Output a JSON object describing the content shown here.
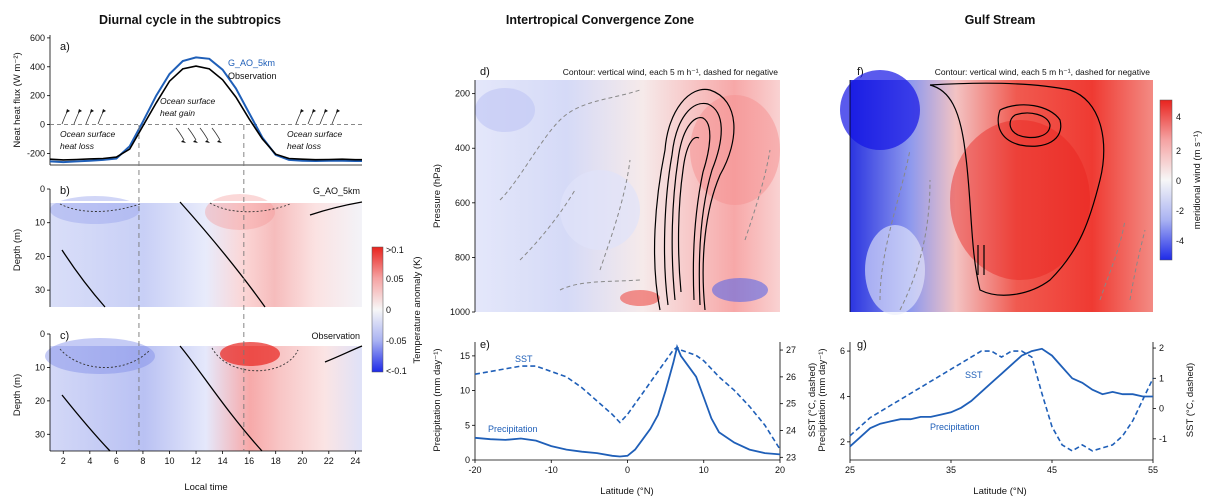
{
  "titles": {
    "left": "Diurnal cycle in the subtropics",
    "middle": "Intertropical Convergence Zone",
    "right": "Gulf Stream"
  },
  "annotations": {
    "heat_loss_left": [
      "Ocean surface",
      "heat loss"
    ],
    "heat_gain": [
      "Ocean surface",
      "heat gain"
    ],
    "heat_loss_right": [
      "Ocean surface",
      "heat loss"
    ],
    "contour_note": "Contour: vertical wind, each 5 m h⁻¹, dashed for negative"
  },
  "temperature_colorbar": {
    "label": "Temperature anomaly (K)",
    "ticks": [
      ">0.1",
      "0.05",
      "0",
      "-0.05",
      "<-0.1"
    ]
  },
  "wind_colorbar": {
    "label": "meridional wind (m s⁻¹)",
    "ticks": [
      "4",
      "2",
      "0",
      "-2",
      "-4"
    ]
  },
  "chart_data": [
    {
      "panel": "a)",
      "type": "line",
      "ylabel": "Neat heat flux (W m⁻²)",
      "xlim": [
        1,
        24.5
      ],
      "ylim": [
        -280,
        620
      ],
      "yticks": [
        -200,
        0,
        200,
        400,
        600
      ],
      "vlines": [
        7.7,
        15.6
      ],
      "hline": 0,
      "series": [
        {
          "name": "G_AO_5km",
          "color": "#1f5fb8",
          "x": [
            1,
            2,
            3,
            4,
            5,
            6,
            7,
            8,
            9,
            10,
            11,
            12,
            13,
            14,
            15,
            16,
            17,
            18,
            19,
            20,
            21,
            22,
            23,
            24,
            24.5
          ],
          "y": [
            -255,
            -260,
            -255,
            -250,
            -245,
            -235,
            -150,
            20,
            200,
            350,
            440,
            465,
            455,
            380,
            250,
            80,
            -90,
            -210,
            -245,
            -250,
            -252,
            -250,
            -250,
            -252,
            -252
          ]
        },
        {
          "name": "Observation",
          "color": "#000000",
          "x": [
            1,
            2,
            3,
            4,
            5,
            6,
            7,
            8,
            9,
            10,
            11,
            12,
            13,
            14,
            15,
            16,
            17,
            18,
            19,
            20,
            21,
            22,
            23,
            24,
            24.5
          ],
          "y": [
            -240,
            -245,
            -242,
            -238,
            -235,
            -225,
            -170,
            -10,
            150,
            300,
            385,
            405,
            385,
            310,
            190,
            40,
            -100,
            -205,
            -235,
            -240,
            -243,
            -242,
            -240,
            -243,
            -243
          ]
        }
      ]
    },
    {
      "panel": "b)",
      "type": "heatmap",
      "name": "G_AO_5km",
      "ylabel": "Depth (m)",
      "yticks": [
        0,
        10,
        20,
        30
      ],
      "ylim": [
        0,
        35
      ]
    },
    {
      "panel": "c)",
      "type": "heatmap",
      "name": "Observation",
      "ylabel": "Depth (m)",
      "xlabel": "Local time",
      "yticks": [
        0,
        10,
        20,
        30
      ],
      "xticks": [
        2,
        4,
        6,
        8,
        10,
        12,
        14,
        16,
        18,
        20,
        22,
        24
      ],
      "ylim": [
        0,
        35
      ]
    },
    {
      "panel": "d)",
      "type": "heatmap",
      "ylabel": "Pressure (hPa)",
      "yticks": [
        200,
        400,
        600,
        800,
        1000
      ],
      "ylim": [
        150,
        1000
      ],
      "xlim": [
        -20,
        20
      ]
    },
    {
      "panel": "e)",
      "type": "line",
      "ylabel": "Precipitation (mm day⁻¹)",
      "y2label": "SST (°C, dashed)",
      "xlabel": "Latitude (°N)",
      "xticks": [
        -20,
        -10,
        0,
        10,
        20
      ],
      "yticks": [
        0,
        5,
        10,
        15
      ],
      "y2ticks": [
        23,
        24,
        25,
        26,
        27
      ],
      "xlim": [
        -20,
        20
      ],
      "ylim": [
        0,
        17
      ],
      "y2lim": [
        22.9,
        27.3
      ],
      "series": [
        {
          "name": "Precipitation",
          "x": [
            -20,
            -18,
            -16,
            -14,
            -12,
            -10,
            -8,
            -6,
            -4,
            -2,
            -1,
            0,
            1,
            2,
            3,
            4,
            5,
            6,
            6.5,
            7,
            8,
            9,
            10,
            11,
            12,
            14,
            16,
            18,
            20
          ],
          "y": [
            3.2,
            3.0,
            2.9,
            3.1,
            2.8,
            2.0,
            1.5,
            1.2,
            1.0,
            0.6,
            0.5,
            0.6,
            1.5,
            3.0,
            4.5,
            6.5,
            10,
            14,
            16.3,
            15,
            13.5,
            12,
            9,
            6,
            4,
            2.5,
            1.5,
            1.0,
            0.8
          ]
        },
        {
          "name": "SST",
          "axis": "right",
          "x": [
            -20,
            -18,
            -16,
            -14,
            -12,
            -10,
            -8,
            -6,
            -4,
            -2,
            -1,
            0,
            1,
            2,
            3,
            4,
            5,
            6,
            6.5,
            7,
            8,
            9,
            10,
            11,
            12,
            14,
            16,
            18,
            20
          ],
          "y": [
            26.1,
            26.2,
            26.3,
            26.4,
            26.4,
            26.2,
            26.0,
            25.6,
            25.1,
            24.6,
            24.3,
            24.6,
            25.0,
            25.4,
            25.8,
            26.2,
            26.6,
            27.0,
            27.1,
            27.0,
            26.9,
            26.8,
            26.6,
            26.3,
            26.0,
            25.5,
            24.9,
            24.2,
            23.3
          ]
        }
      ]
    },
    {
      "panel": "f)",
      "type": "heatmap",
      "xlim": [
        25,
        55
      ]
    },
    {
      "panel": "g)",
      "type": "line",
      "ylabel": "Precipitation (mm day⁻¹)",
      "y2label": "SST (°C, dashed)",
      "xlabel": "Latitude (°N)",
      "xticks": [
        25,
        35,
        45,
        55
      ],
      "yticks": [
        2,
        4,
        6
      ],
      "y2ticks": [
        -1,
        0,
        1,
        2
      ],
      "xlim": [
        25,
        55
      ],
      "ylim": [
        1.2,
        6.4
      ],
      "y2lim": [
        -1.7,
        2.2
      ],
      "series": [
        {
          "name": "Precipitation",
          "x": [
            25,
            26,
            27,
            28,
            29,
            30,
            31,
            32,
            33,
            34,
            35,
            36,
            37,
            38,
            39,
            40,
            41,
            42,
            43,
            44,
            45,
            46,
            47,
            48,
            49,
            50,
            51,
            52,
            53,
            54,
            55
          ],
          "y": [
            1.8,
            2.2,
            2.6,
            2.8,
            2.9,
            3.0,
            3.0,
            3.1,
            3.1,
            3.2,
            3.3,
            3.5,
            3.8,
            4.2,
            4.6,
            5.0,
            5.4,
            5.8,
            6.0,
            6.1,
            5.8,
            5.3,
            4.8,
            4.6,
            4.3,
            4.1,
            4.2,
            4.1,
            4.1,
            4.0,
            4.0
          ]
        },
        {
          "name": "SST",
          "axis": "right",
          "x": [
            25,
            26,
            27,
            28,
            29,
            30,
            31,
            32,
            33,
            34,
            35,
            36,
            37,
            38,
            39,
            40,
            41,
            42,
            43,
            44,
            45,
            46,
            47,
            48,
            49,
            50,
            51,
            52,
            53,
            54,
            55
          ],
          "y": [
            -0.9,
            -0.6,
            -0.3,
            -0.1,
            0.1,
            0.3,
            0.5,
            0.7,
            0.9,
            1.1,
            1.3,
            1.5,
            1.7,
            1.9,
            1.9,
            1.7,
            1.9,
            1.9,
            1.7,
            0.5,
            -0.6,
            -1.2,
            -1.4,
            -1.2,
            -1.4,
            -1.3,
            -1.2,
            -0.9,
            -0.4,
            0.3,
            1.0
          ]
        }
      ]
    }
  ]
}
